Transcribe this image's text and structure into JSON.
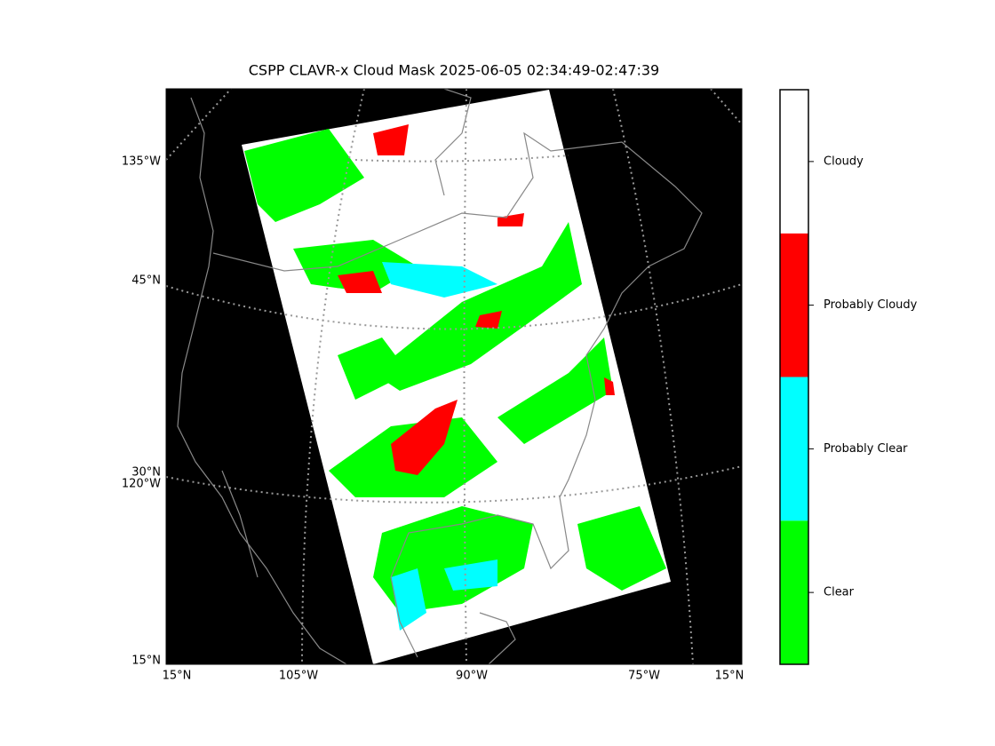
{
  "title": "CSPP CLAVR-x Cloud Mask 2025-06-05 02:34:49-02:47:39",
  "left_labels": [
    "135°W",
    "45°N",
    "30°N",
    "120°W",
    "15°N"
  ],
  "bottom_labels": [
    "15°N",
    "105°W",
    "90°W",
    "75°W",
    "15°N"
  ],
  "colorbar": {
    "labels": [
      "Clear",
      "Probably Clear",
      "Probably Cloudy",
      "Cloudy"
    ],
    "colors": [
      "#00ff00",
      "#00ffff",
      "#ff0000",
      "#ffffff"
    ]
  }
}
